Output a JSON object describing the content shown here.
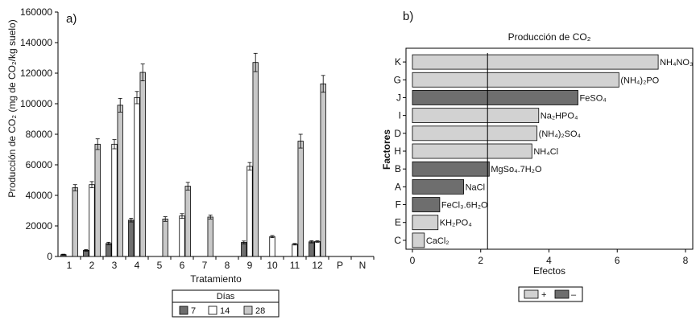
{
  "chart_data": [
    {
      "panel_label": "a)",
      "type": "bar",
      "xlabel": "Tratamiento",
      "ylabel": "Producción de CO₂ (mg de CO₂/kg suelo)",
      "ylim": [
        0,
        160000
      ],
      "yticks": [
        "0",
        "20000",
        "40000",
        "60000",
        "80000",
        "100000",
        "120000",
        "140000",
        "160000"
      ],
      "categories": [
        "1",
        "2",
        "3",
        "4",
        "5",
        "6",
        "7",
        "8",
        "9",
        "10",
        "11",
        "12",
        "P",
        "N"
      ],
      "legend": {
        "title": "Días",
        "position": "bottom"
      },
      "series": [
        {
          "name": "7",
          "color": "#6e6e6e",
          "values": [
            1200,
            4000,
            8500,
            23800,
            null,
            null,
            null,
            null,
            9200,
            null,
            null,
            9600,
            null,
            null
          ],
          "errors": [
            300,
            500,
            800,
            1200,
            null,
            null,
            null,
            null,
            900,
            null,
            null,
            700,
            null,
            null
          ]
        },
        {
          "name": "14",
          "color": "#ffffff",
          "values": [
            null,
            47000,
            73500,
            104000,
            null,
            26500,
            null,
            null,
            59000,
            13000,
            8000,
            9800,
            null,
            null
          ],
          "errors": [
            null,
            2000,
            3000,
            4000,
            null,
            1500,
            null,
            null,
            2500,
            700,
            500,
            500,
            null,
            null
          ]
        },
        {
          "name": "28",
          "color": "#c8c8c8",
          "values": [
            45000,
            73500,
            99000,
            120500,
            24500,
            46000,
            25800,
            null,
            127000,
            null,
            75500,
            113000,
            null,
            null
          ],
          "errors": [
            2000,
            3500,
            4500,
            5500,
            1500,
            2500,
            1300,
            null,
            6000,
            null,
            4500,
            5500,
            null,
            null
          ]
        }
      ]
    },
    {
      "panel_label": "b)",
      "type": "bar",
      "orientation": "horizontal",
      "title": "Producción de CO₂",
      "xlabel": "Efectos",
      "ylabel": "Factores",
      "xlim": [
        0,
        8
      ],
      "xticks": [
        "0",
        "2",
        "4",
        "6",
        "8"
      ],
      "reference_line": 2.2,
      "legend": {
        "entries": [
          "+",
          "–"
        ],
        "position": "bottom"
      },
      "colors": {
        "positive": "#d2d2d2",
        "negative": "#6e6e6e"
      },
      "bars": [
        {
          "factor": "K",
          "compound": "NH₄NO₃",
          "value": 7.2,
          "sign": "+"
        },
        {
          "factor": "G",
          "compound": "(NH₄)₂PO",
          "value": 6.05,
          "sign": "+"
        },
        {
          "factor": "J",
          "compound": "FeSO₄",
          "value": 4.85,
          "sign": "-"
        },
        {
          "factor": "I",
          "compound": "Na₂HPO₄",
          "value": 3.7,
          "sign": "+"
        },
        {
          "factor": "D",
          "compound": "(NH₄)₂SO₄",
          "value": 3.65,
          "sign": "+"
        },
        {
          "factor": "H",
          "compound": "NH₄Cl",
          "value": 3.5,
          "sign": "+"
        },
        {
          "factor": "B",
          "compound": "MgSo₄.7H₂O",
          "value": 2.25,
          "sign": "-"
        },
        {
          "factor": "A",
          "compound": "NaCl",
          "value": 1.5,
          "sign": "-"
        },
        {
          "factor": "F",
          "compound": "FeCl₃.6H₂O",
          "value": 0.8,
          "sign": "-"
        },
        {
          "factor": "E",
          "compound": "KH₂PO₄",
          "value": 0.75,
          "sign": "+"
        },
        {
          "factor": "C",
          "compound": "CaCl₂",
          "value": 0.35,
          "sign": "+"
        }
      ]
    }
  ]
}
